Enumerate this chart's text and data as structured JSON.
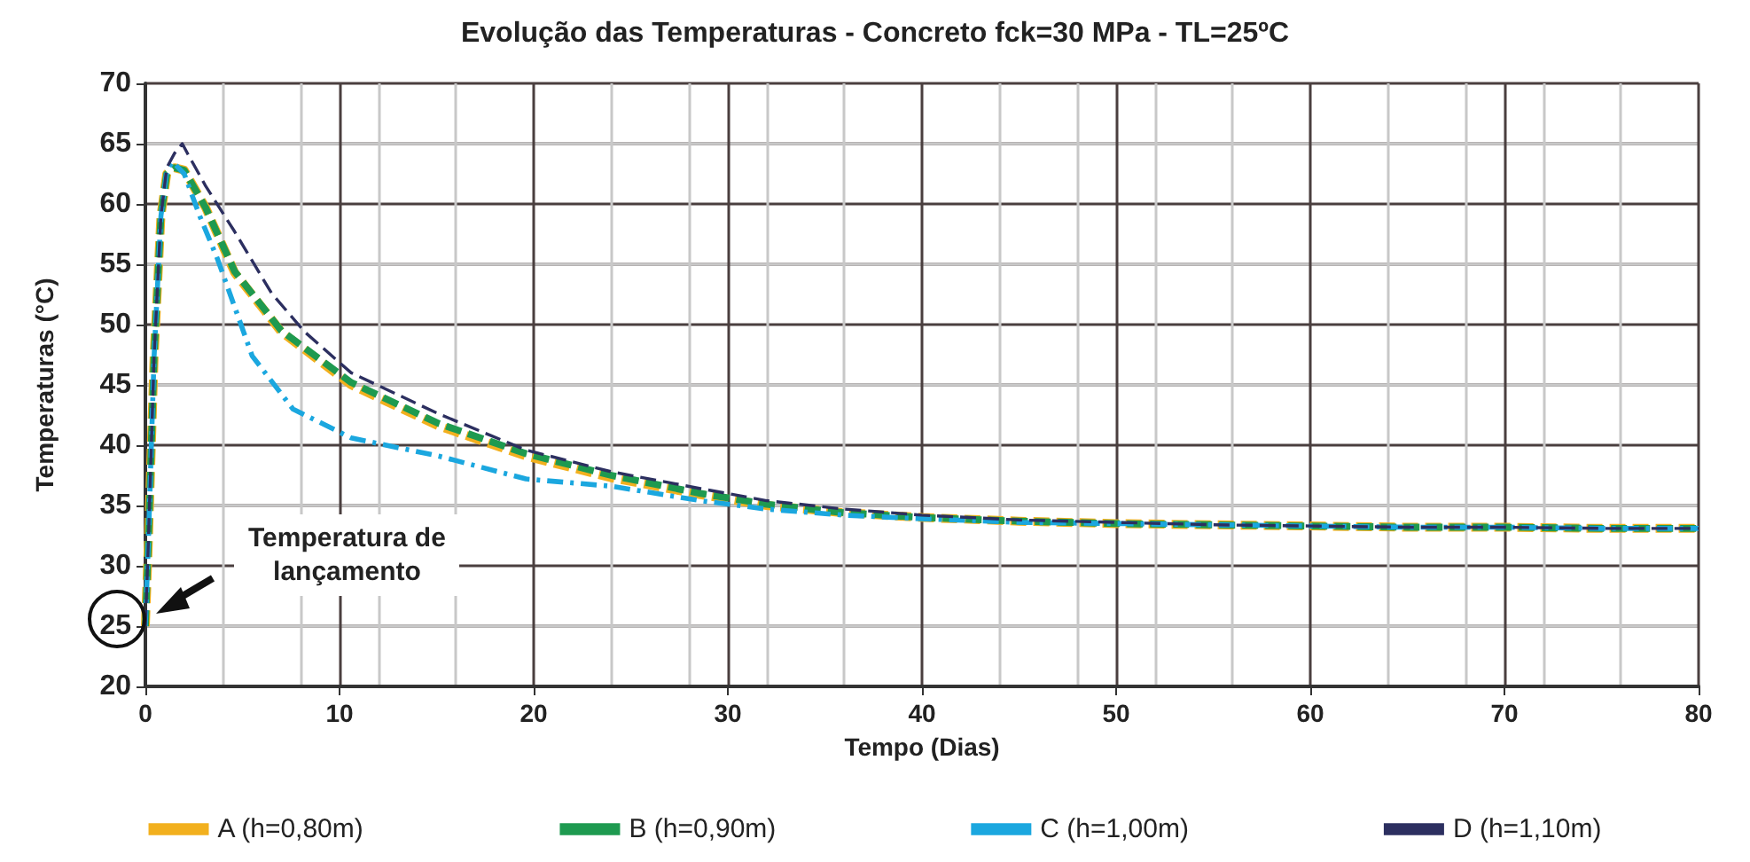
{
  "chart_data": {
    "type": "line",
    "title": "Evolução das Temperaturas - Concreto fck=30 MPa - TL=25ºC",
    "xlabel": "Tempo (Dias)",
    "ylabel": "Temperaturas (°C)",
    "annotations": [
      "Temperatura de\nlançamento"
    ],
    "xlim": [
      0,
      80
    ],
    "xticks": [
      0,
      10,
      20,
      30,
      40,
      50,
      60,
      70,
      80
    ],
    "ylim": [
      20,
      70
    ],
    "yticks": [
      20,
      25,
      30,
      35,
      40,
      45,
      50,
      55,
      60,
      65,
      70
    ],
    "grid": true,
    "legend": "bottom",
    "marker": "none",
    "series": [
      {
        "name": "A (h=0,80m)",
        "color": "#f2b01e",
        "line_style": "dashed",
        "x": [
          0,
          0.15,
          0.45,
          0.8,
          1.1,
          1.5,
          2,
          3.1,
          4.6,
          7,
          10.6,
          15.1,
          19.6,
          24,
          28.6,
          32,
          36,
          40,
          45,
          50,
          55,
          60,
          65,
          70,
          75,
          80
        ],
        "values": [
          25,
          31.8,
          47.4,
          59,
          62.5,
          63,
          62.8,
          59.7,
          54.3,
          49.4,
          45,
          41.6,
          39.1,
          37.3,
          35.9,
          35,
          34.4,
          34,
          33.7,
          33.5,
          33.4,
          33.3,
          33.2,
          33.2,
          33.1,
          33.1
        ]
      },
      {
        "name": "B (h=0,90m)",
        "color": "#1e9a50",
        "line_style": "dashed",
        "x": [
          0,
          0.15,
          0.45,
          0.8,
          1.1,
          1.5,
          2,
          3.1,
          4.6,
          7,
          10.6,
          15.1,
          19.6,
          24,
          28.6,
          32,
          36,
          40,
          45,
          50,
          55,
          60,
          65,
          70,
          75,
          80
        ],
        "values": [
          25,
          31.8,
          47.4,
          59,
          62.5,
          63,
          62.8,
          59.7,
          54.4,
          49.5,
          45.2,
          41.8,
          39.3,
          37.5,
          36,
          35.1,
          34.4,
          34,
          33.7,
          33.5,
          33.4,
          33.3,
          33.2,
          33.2,
          33.1,
          33.1
        ]
      },
      {
        "name": "C (h=1,00m)",
        "color": "#1ba7df",
        "line_style": "dotted",
        "x": [
          0,
          0.15,
          0.45,
          0.8,
          1.1,
          1.4,
          2,
          2.8,
          3.7,
          5.5,
          7.6,
          10.6,
          15.1,
          19.6,
          24,
          28.6,
          32,
          36,
          40,
          45,
          50,
          55,
          60,
          65,
          70,
          75,
          80
        ],
        "values": [
          25,
          31.8,
          47.4,
          59,
          62.8,
          63.5,
          62.5,
          59,
          55.5,
          47.4,
          43,
          40.6,
          39.1,
          37.2,
          36.6,
          35.4,
          34.7,
          34.2,
          33.9,
          33.6,
          33.5,
          33.4,
          33.3,
          33.2,
          33.2,
          33.1,
          33.1
        ]
      },
      {
        "name": "D (h=1,10m)",
        "color": "#2c2f60",
        "line_style": "dashed",
        "x": [
          0,
          0.15,
          0.45,
          0.8,
          1.1,
          1.5,
          1.9,
          2.2,
          3.1,
          4.6,
          6.5,
          8.2,
          10.6,
          15.1,
          19.6,
          24,
          28.6,
          32,
          36,
          40,
          45,
          50,
          55,
          60,
          65,
          70,
          75,
          80
        ],
        "values": [
          25,
          31.8,
          47.4,
          59,
          63,
          64.2,
          65,
          64.1,
          61.5,
          57.7,
          52.6,
          49.4,
          46,
          42.6,
          39.6,
          37.8,
          36.4,
          35.4,
          34.7,
          34.2,
          33.8,
          33.6,
          33.4,
          33.3,
          33.2,
          33.2,
          33.1,
          33.1
        ]
      }
    ]
  }
}
